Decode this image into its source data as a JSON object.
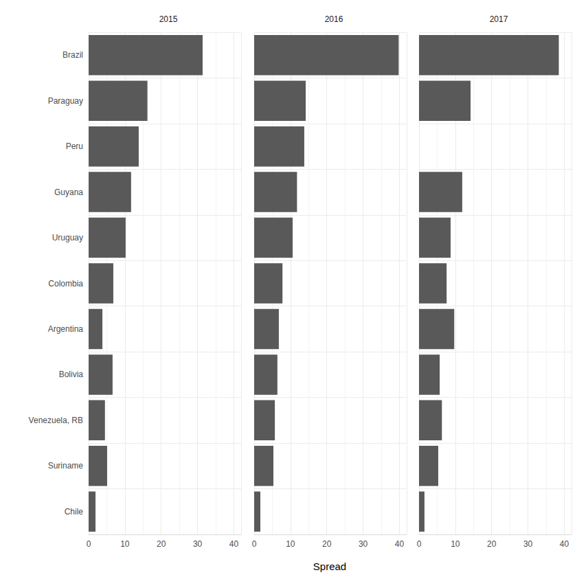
{
  "chart_data": {
    "type": "bar",
    "orientation": "horizontal",
    "grid": true,
    "xlabel": "Spread",
    "categories": [
      "Brazil",
      "Paraguay",
      "Peru",
      "Guyana",
      "Uruguay",
      "Colombia",
      "Argentina",
      "Bolivia",
      "Venezuela, RB",
      "Suriname",
      "Chile"
    ],
    "xlim": [
      0,
      42
    ],
    "xticks": [
      0,
      10,
      20,
      30,
      40
    ],
    "series": [
      {
        "name": "2015",
        "color": "#595959",
        "values": [
          31.4,
          16.2,
          13.8,
          11.7,
          10.2,
          6.8,
          3.8,
          6.6,
          4.5,
          5.1,
          1.9
        ]
      },
      {
        "name": "2016",
        "color": "#595959",
        "values": [
          39.8,
          14.2,
          13.8,
          11.8,
          10.6,
          7.8,
          6.8,
          6.4,
          5.7,
          5.3,
          1.7
        ]
      },
      {
        "name": "2017",
        "color": "#595959",
        "values": [
          38.5,
          14.2,
          null,
          11.9,
          8.7,
          7.6,
          9.7,
          5.7,
          6.3,
          5.3,
          1.5
        ]
      }
    ]
  }
}
